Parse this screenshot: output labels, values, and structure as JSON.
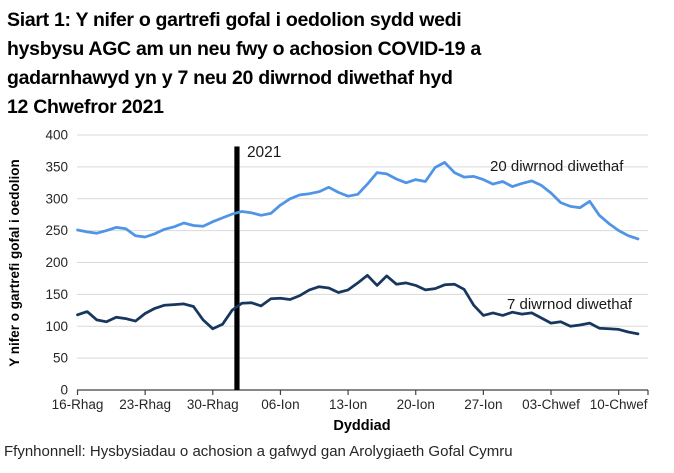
{
  "title": {
    "lines": [
      "Siart 1: Y nifer o gartrefi gofal i oedolion sydd wedi",
      "hysbysu AGC am un neu fwy o achosion COVID-19 a",
      "gadarnhawyd yn y 7 neu 20 diwrnod diwethaf hyd",
      "12 Chwefror 2021"
    ]
  },
  "footer": {
    "source": "Ffynhonnell: Hysbysiadau o achosion a gafwyd gan Arolygiaeth Gofal Cymru"
  },
  "colors": {
    "line_20day": "#4f94e6",
    "line_7day": "#17375e",
    "gridline": "#d9d9d9",
    "axis": "#404040",
    "annotation_bar": "#000000",
    "text": "#262626",
    "label_text": "#1a1a1a"
  },
  "chart_data": {
    "type": "line",
    "title": "Siart 1: Y nifer o gartrefi gofal i oedolion sydd wedi hysbysu AGC am un neu fwy o achosion COVID-19 a gadarnhawyd yn y 7 neu 20 diwrnod diwethaf hyd 12 Chwefror 2021",
    "xlabel": "Dyddiad",
    "ylabel": "Y nifer o gartrefi gofal i oedolion",
    "ylim": [
      0,
      400
    ],
    "ytick_step": 50,
    "grid": "horizontal",
    "legend_position": "inline-labels",
    "x_tick_labels": [
      "16-Rhag",
      "23-Rhag",
      "30-Rhag",
      "06-Ion",
      "13-Ion",
      "20-Ion",
      "27-Ion",
      "03-Chwef",
      "10-Chwef"
    ],
    "x_tick_day_indices": [
      0,
      7,
      14,
      21,
      28,
      35,
      42,
      49,
      56
    ],
    "annotation": {
      "label": "2021",
      "date": "2021-01-01",
      "top_value": 382
    },
    "dates": [
      "2020-12-16",
      "2020-12-17",
      "2020-12-18",
      "2020-12-19",
      "2020-12-20",
      "2020-12-21",
      "2020-12-22",
      "2020-12-23",
      "2020-12-24",
      "2020-12-25",
      "2020-12-26",
      "2020-12-27",
      "2020-12-28",
      "2020-12-29",
      "2020-12-30",
      "2020-12-31",
      "2021-01-01",
      "2021-01-02",
      "2021-01-03",
      "2021-01-04",
      "2021-01-05",
      "2021-01-06",
      "2021-01-07",
      "2021-01-08",
      "2021-01-09",
      "2021-01-10",
      "2021-01-11",
      "2021-01-12",
      "2021-01-13",
      "2021-01-14",
      "2021-01-15",
      "2021-01-16",
      "2021-01-17",
      "2021-01-18",
      "2021-01-19",
      "2021-01-20",
      "2021-01-21",
      "2021-01-22",
      "2021-01-23",
      "2021-01-24",
      "2021-01-25",
      "2021-01-26",
      "2021-01-27",
      "2021-01-28",
      "2021-01-29",
      "2021-01-30",
      "2021-01-31",
      "2021-02-01",
      "2021-02-02",
      "2021-02-03",
      "2021-02-04",
      "2021-02-05",
      "2021-02-06",
      "2021-02-07",
      "2021-02-08",
      "2021-02-09",
      "2021-02-10",
      "2021-02-11",
      "2021-02-12"
    ],
    "series": [
      {
        "name": "20 diwrnod diwethaf",
        "color_key": "line_20day",
        "values": [
          251,
          248,
          246,
          250,
          255,
          253,
          242,
          240,
          245,
          252,
          256,
          262,
          258,
          257,
          264,
          270,
          276,
          280,
          278,
          274,
          277,
          290,
          300,
          306,
          308,
          311,
          318,
          310,
          304,
          307,
          323,
          341,
          339,
          331,
          325,
          330,
          327,
          349,
          357,
          341,
          334,
          335,
          330,
          323,
          327,
          319,
          324,
          328,
          321,
          309,
          294,
          288,
          286,
          296,
          274,
          261,
          250,
          242,
          237
        ]
      },
      {
        "name": "7 diwrnod diwethaf",
        "color_key": "line_7day",
        "values": [
          118,
          123,
          110,
          107,
          114,
          112,
          108,
          120,
          128,
          133,
          134,
          135,
          131,
          110,
          96,
          103,
          125,
          136,
          137,
          132,
          143,
          144,
          142,
          148,
          157,
          162,
          160,
          153,
          157,
          168,
          180,
          164,
          179,
          166,
          168,
          164,
          157,
          159,
          165,
          166,
          158,
          133,
          117,
          121,
          117,
          122,
          119,
          121,
          113,
          105,
          107,
          100,
          102,
          105,
          97,
          96,
          95,
          91,
          88
        ]
      }
    ]
  }
}
